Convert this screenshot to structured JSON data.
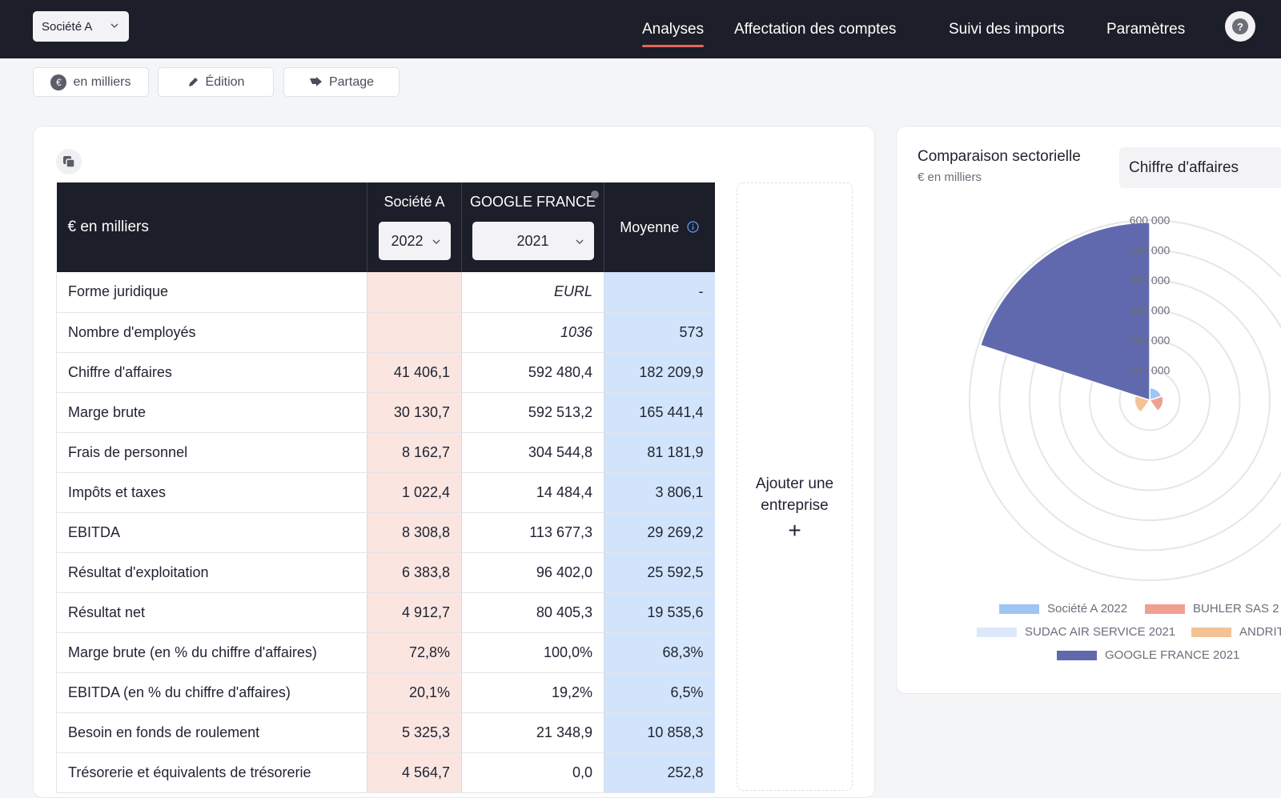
{
  "header": {
    "company": "Société A",
    "nav": [
      {
        "label": "Analyses",
        "active": true
      },
      {
        "label": "Affectation des comptes"
      },
      {
        "label": "Suivi des imports"
      },
      {
        "label": "Paramètres"
      }
    ],
    "help": "?"
  },
  "toolbar": {
    "unit_btn": "en milliers",
    "edit_btn": "Édition",
    "share_btn": "Partage",
    "unit_icon": "€"
  },
  "table": {
    "header_label": "€ en milliers",
    "col_company": {
      "name": "Société A",
      "year": "2022"
    },
    "col_compare": {
      "name": "GOOGLE FRANCE",
      "year": "2021"
    },
    "col_avg": "Moyenne",
    "rows": [
      {
        "label": "Forme juridique",
        "soc": "",
        "goo": "EURL",
        "avg": "-"
      },
      {
        "label": "Nombre d'employés",
        "soc": "",
        "goo": "1036",
        "avg": "573"
      },
      {
        "label": "Chiffre d'affaires",
        "soc": "41 406,1",
        "goo": "592 480,4",
        "avg": "182 209,9"
      },
      {
        "label": "Marge brute",
        "soc": "30 130,7",
        "goo": "592 513,2",
        "avg": "165 441,4"
      },
      {
        "label": "Frais de personnel",
        "soc": "8 162,7",
        "goo": "304 544,8",
        "avg": "81 181,9"
      },
      {
        "label": "Impôts et taxes",
        "soc": "1 022,4",
        "goo": "14 484,4",
        "avg": "3 806,1"
      },
      {
        "label": "EBITDA",
        "soc": "8 308,8",
        "goo": "113 677,3",
        "avg": "29 269,2"
      },
      {
        "label": "Résultat d'exploitation",
        "soc": "6 383,8",
        "goo": "96 402,0",
        "avg": "25 592,5"
      },
      {
        "label": "Résultat net",
        "soc": "4 912,7",
        "goo": "80 405,3",
        "avg": "19 535,6"
      },
      {
        "label": "Marge brute (en % du chiffre d'affaires)",
        "soc": "72,8%",
        "goo": "100,0%",
        "avg": "68,3%"
      },
      {
        "label": "EBITDA (en % du chiffre d'affaires)",
        "soc": "20,1%",
        "goo": "19,2%",
        "avg": "6,5%"
      },
      {
        "label": "Besoin en fonds de roulement",
        "soc": "5 325,3",
        "goo": "21 348,9",
        "avg": "10 858,3"
      },
      {
        "label": "Trésorerie et équivalents de trésorerie",
        "soc": "4 564,7",
        "goo": "0,0",
        "avg": "252,8"
      }
    ]
  },
  "add_company": {
    "label": "Ajouter une entreprise",
    "plus": "+"
  },
  "comparison": {
    "title": "Comparaison sectorielle",
    "subtitle": "€ en milliers",
    "metric": "Chiffre d'affaires"
  },
  "chart_data": {
    "type": "polar-area",
    "radial_ticks": [
      "100 000",
      "200 000",
      "300 000",
      "400 000",
      "500 000",
      "600 000"
    ],
    "rmax": 600000,
    "series": [
      {
        "name": "Société A 2022",
        "value": 41406.1,
        "color": "#9ec5f3"
      },
      {
        "name": "BUHLER SAS 2",
        "value": 45000,
        "color": "#f0a091"
      },
      {
        "name": "SUDAC AIR SERVICE 2021",
        "value": 5000,
        "color": "#dde9fa"
      },
      {
        "name": "ANDRIT",
        "value": 50000,
        "color": "#f3c394"
      },
      {
        "name": "GOOGLE FRANCE 2021",
        "value": 592480.4,
        "color": "#6069ae"
      }
    ]
  }
}
